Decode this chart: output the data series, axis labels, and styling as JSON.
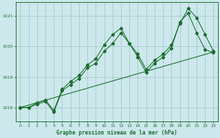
{
  "title": "Graphe pression niveau de la mer (hPa)",
  "bg_color": "#cce8ec",
  "grid_color": "#aacccc",
  "line_color": "#1a6e2e",
  "xlim": [
    -0.5,
    23.5
  ],
  "ylim": [
    1017.55,
    1021.45
  ],
  "yticks": [
    1018,
    1019,
    1020,
    1021
  ],
  "xticks": [
    0,
    1,
    2,
    3,
    4,
    5,
    6,
    7,
    8,
    9,
    10,
    11,
    12,
    13,
    14,
    15,
    16,
    17,
    18,
    19,
    20,
    21,
    22,
    23
  ],
  "series": [
    {
      "x": [
        0,
        1,
        2,
        3,
        4,
        5,
        6,
        7,
        8,
        9,
        10,
        11,
        12,
        13,
        14,
        15,
        16,
        17,
        18,
        19,
        20,
        21,
        22,
        23
      ],
      "y": [
        1018.0,
        1018.0,
        1018.1,
        1018.2,
        1017.85,
        1018.55,
        1018.75,
        1018.95,
        1019.3,
        1019.45,
        1019.85,
        1020.1,
        1020.45,
        1020.1,
        1019.65,
        1019.15,
        1019.45,
        1019.65,
        1019.95,
        1020.8,
        1021.1,
        1020.45,
        1019.9,
        1019.8
      ],
      "has_markers": true
    },
    {
      "x": [
        0,
        1,
        2,
        3,
        4,
        5,
        6,
        7,
        8,
        9,
        10,
        11,
        12,
        13,
        14,
        15,
        16,
        17,
        18,
        19,
        20,
        21,
        22,
        23
      ],
      "y": [
        1018.0,
        1018.0,
        1018.15,
        1018.25,
        1017.9,
        1018.6,
        1018.85,
        1019.05,
        1019.4,
        1019.6,
        1020.05,
        1020.4,
        1020.6,
        1020.1,
        1019.75,
        1019.25,
        1019.55,
        1019.75,
        1020.05,
        1020.75,
        1021.25,
        1020.95,
        1020.4,
        1019.85
      ],
      "has_markers": true
    },
    {
      "x": [
        0,
        23
      ],
      "y": [
        1018.0,
        1019.82
      ],
      "has_markers": false
    }
  ]
}
